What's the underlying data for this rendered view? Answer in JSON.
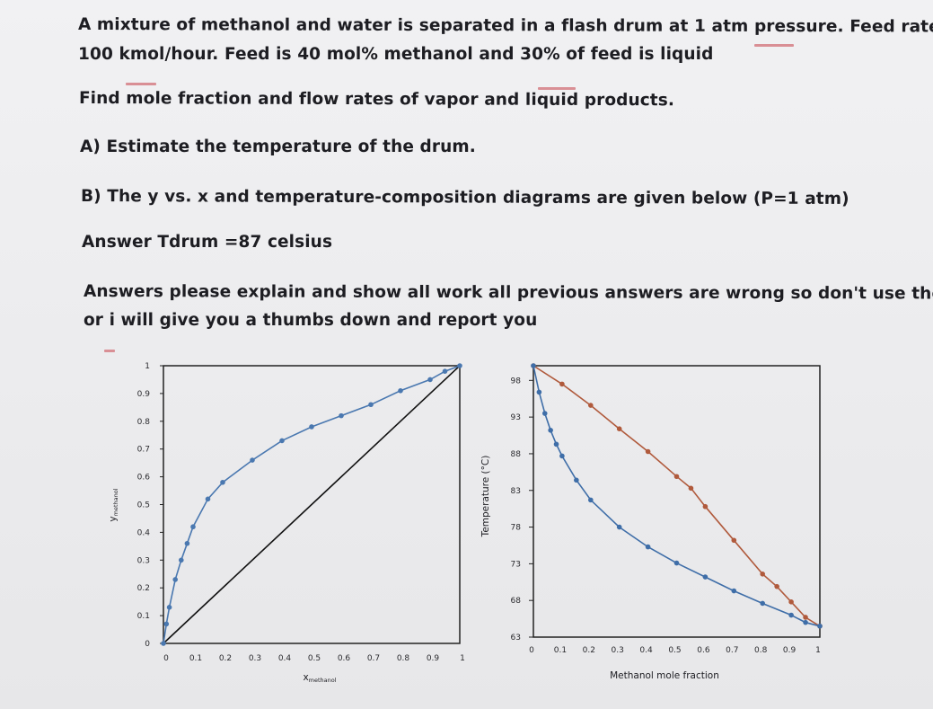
{
  "problem": {
    "line1": "A mixture of methanol and water is separated in a flash drum at 1 atm pressure. Feed rate is",
    "line2": "100 kmol/hour. Feed is 40 mol% methanol and 30% of feed is liquid",
    "line3": "Find mole fraction and flow rates of vapor and liquid products.",
    "line4": "A) Estimate the temperature of the drum.",
    "line5": "B) The y vs. x and temperature-composition diagrams are given below (P=1 atm)",
    "line6": "Answer Tdrum  =87 celsius",
    "line7": "Answers please explain and show all work all previous answers are wrong so don't use them",
    "line8": "or i will give you a thumbs down and report you"
  },
  "colors": {
    "text": "#1d1d22",
    "eq_curve": "#4a78b0",
    "bubble_curve": "#3f6ea8",
    "dew_curve": "#b05a3c",
    "axis": "#222222",
    "pen_marks": "#d98f95"
  },
  "chart_data": [
    {
      "type": "line",
      "title": "",
      "xlabel": "x",
      "xlabel_sub": "methanol",
      "ylabel": "y",
      "ylabel_sub": "methanol",
      "xlim": [
        0,
        1
      ],
      "ylim": [
        0,
        1
      ],
      "x_ticks": [
        "0",
        "0.1",
        "0.2",
        "0.3",
        "0.4",
        "0.5",
        "0.6",
        "0.7",
        "0.8",
        "0.9",
        "1"
      ],
      "y_ticks": [
        "0",
        "0.1",
        "0.2",
        "0.3",
        "0.4",
        "0.5",
        "0.6",
        "0.7",
        "0.8",
        "0.9",
        "1"
      ],
      "grid": false,
      "legend": "none",
      "series": [
        {
          "x": [
            0,
            0.01,
            0.02,
            0.04,
            0.06,
            0.08,
            0.1,
            0.15,
            0.2,
            0.3,
            0.4,
            0.5,
            0.6,
            0.7,
            0.8,
            0.9,
            0.95,
            1.0
          ],
          "y": [
            0,
            0.07,
            0.13,
            0.23,
            0.3,
            0.36,
            0.42,
            0.52,
            0.58,
            0.66,
            0.73,
            0.78,
            0.82,
            0.86,
            0.91,
            0.95,
            0.98,
            1.0
          ]
        },
        {
          "x": [
            0,
            1
          ],
          "y": [
            0,
            1
          ]
        }
      ]
    },
    {
      "type": "line",
      "title": "",
      "xlabel": "Methanol mole fraction",
      "ylabel": "Temperature (°C)",
      "xlim": [
        0,
        1
      ],
      "ylim": [
        63,
        100
      ],
      "x_ticks": [
        "0",
        "0.1",
        "0.2",
        "0.3",
        "0.4",
        "0.5",
        "0.6",
        "0.7",
        "0.8",
        "0.9",
        "1"
      ],
      "y_ticks": [
        "63",
        "68",
        "73",
        "78",
        "83",
        "88",
        "93",
        "98"
      ],
      "grid": false,
      "legend": "none",
      "series": [
        {
          "x": [
            0,
            0.02,
            0.04,
            0.06,
            0.08,
            0.1,
            0.15,
            0.2,
            0.3,
            0.4,
            0.5,
            0.6,
            0.7,
            0.8,
            0.9,
            0.95,
            1.0
          ],
          "y": [
            100,
            96.4,
            93.5,
            91.2,
            89.3,
            87.7,
            84.4,
            81.7,
            78.0,
            75.3,
            73.1,
            71.2,
            69.3,
            67.6,
            66.0,
            65.0,
            64.5
          ]
        },
        {
          "x": [
            0,
            0.1,
            0.2,
            0.3,
            0.4,
            0.5,
            0.55,
            0.6,
            0.7,
            0.8,
            0.85,
            0.9,
            0.95,
            1.0
          ],
          "y": [
            100,
            97.5,
            94.6,
            91.4,
            88.3,
            84.9,
            83.3,
            80.8,
            76.2,
            71.6,
            69.9,
            67.8,
            65.7,
            64.5
          ]
        }
      ]
    }
  ]
}
